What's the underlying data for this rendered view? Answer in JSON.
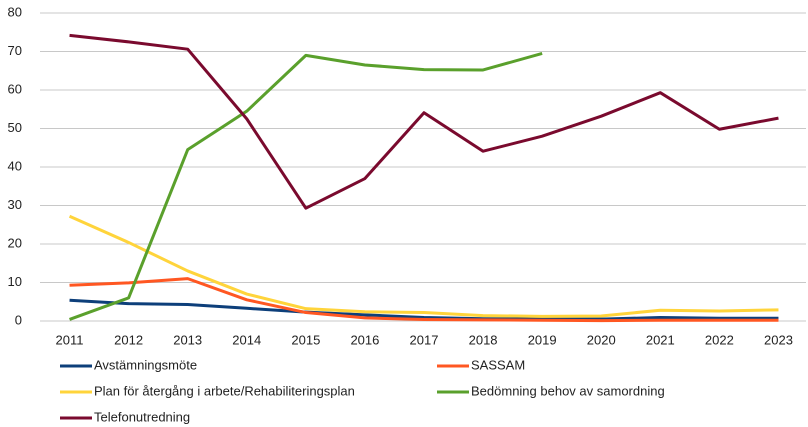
{
  "chart_data": {
    "type": "line",
    "x": [
      "2011",
      "2012",
      "2013",
      "2014",
      "2015",
      "2016",
      "2017",
      "2018",
      "2019",
      "2020",
      "2021",
      "2022",
      "2023"
    ],
    "series": [
      {
        "name": "Avstämningsmöte",
        "color": "#0d3f7a",
        "values": [
          5.4,
          4.5,
          4.3,
          3.3,
          2.3,
          1.6,
          0.9,
          0.6,
          0.5,
          0.5,
          0.9,
          0.7,
          0.7
        ]
      },
      {
        "name": "SASSAM",
        "color": "#ff5722",
        "values": [
          9.3,
          9.9,
          11,
          5.5,
          2.2,
          0.8,
          0.4,
          0.3,
          0.2,
          0.1,
          0.2,
          0.2,
          0.2
        ]
      },
      {
        "name": "Plan för återgång i arbete/Rehabiliteringsplan",
        "color": "#ffd43b",
        "values": [
          27.2,
          20.4,
          13,
          7,
          3.2,
          2.4,
          2.2,
          1.4,
          1.2,
          1.3,
          2.8,
          2.6,
          2.9
        ]
      },
      {
        "name": "Bedömning behov av samordning",
        "color": "#5aa02c",
        "values": [
          0.4,
          6,
          44.5,
          54.5,
          69,
          66.5,
          65.3,
          65.2,
          69.5,
          null,
          null,
          null,
          null
        ]
      },
      {
        "name": "Telefonutredning",
        "color": "#7a0a2e",
        "values": [
          74.2,
          72.5,
          70.6,
          52.5,
          29.3,
          37,
          54.1,
          44.1,
          48,
          53.2,
          59.3,
          49.8,
          52.7
        ]
      }
    ],
    "ylim": [
      0,
      80
    ],
    "yticks": [
      0,
      10,
      20,
      30,
      40,
      50,
      60,
      70,
      80
    ],
    "grid": true
  }
}
